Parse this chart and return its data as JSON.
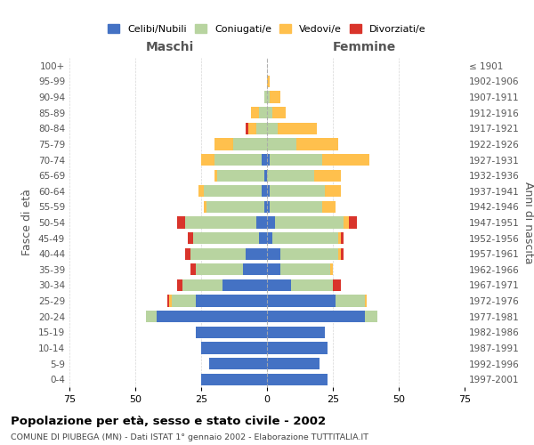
{
  "age_groups": [
    "100+",
    "95-99",
    "90-94",
    "85-89",
    "80-84",
    "75-79",
    "70-74",
    "65-69",
    "60-64",
    "55-59",
    "50-54",
    "45-49",
    "40-44",
    "35-39",
    "30-34",
    "25-29",
    "20-24",
    "15-19",
    "10-14",
    "5-9",
    "0-4"
  ],
  "birth_years": [
    "≤ 1901",
    "1902-1906",
    "1907-1911",
    "1912-1916",
    "1917-1921",
    "1922-1926",
    "1927-1931",
    "1932-1936",
    "1937-1941",
    "1942-1946",
    "1947-1951",
    "1952-1956",
    "1957-1961",
    "1962-1966",
    "1967-1971",
    "1972-1976",
    "1977-1981",
    "1982-1986",
    "1987-1991",
    "1992-1996",
    "1997-2001"
  ],
  "maschi": {
    "celibi": [
      0,
      0,
      0,
      0,
      0,
      0,
      2,
      1,
      2,
      1,
      4,
      3,
      8,
      9,
      17,
      27,
      42,
      27,
      25,
      22,
      25
    ],
    "coniugati": [
      0,
      0,
      1,
      3,
      4,
      13,
      18,
      18,
      22,
      22,
      27,
      25,
      21,
      18,
      15,
      9,
      4,
      0,
      0,
      0,
      0
    ],
    "vedovi": [
      0,
      0,
      0,
      3,
      3,
      7,
      5,
      1,
      2,
      1,
      0,
      0,
      0,
      0,
      0,
      1,
      0,
      0,
      0,
      0,
      0
    ],
    "divorziati": [
      0,
      0,
      0,
      0,
      1,
      0,
      0,
      0,
      0,
      0,
      3,
      2,
      2,
      2,
      2,
      1,
      0,
      0,
      0,
      0,
      0
    ]
  },
  "femmine": {
    "nubili": [
      0,
      0,
      0,
      0,
      0,
      0,
      1,
      0,
      1,
      1,
      3,
      2,
      5,
      5,
      9,
      26,
      37,
      22,
      23,
      20,
      23
    ],
    "coniugate": [
      0,
      0,
      1,
      2,
      4,
      11,
      20,
      18,
      21,
      20,
      26,
      25,
      22,
      19,
      16,
      11,
      5,
      0,
      0,
      0,
      0
    ],
    "vedove": [
      0,
      1,
      4,
      5,
      15,
      16,
      18,
      10,
      6,
      5,
      2,
      1,
      1,
      1,
      0,
      1,
      0,
      0,
      0,
      0,
      0
    ],
    "divorziate": [
      0,
      0,
      0,
      0,
      0,
      0,
      0,
      0,
      0,
      0,
      3,
      1,
      1,
      0,
      3,
      0,
      0,
      0,
      0,
      0,
      0
    ]
  },
  "colors": {
    "celibi_nubili": "#4472c4",
    "coniugati_e": "#b8d4a0",
    "vedovi_e": "#ffc04d",
    "divorziati_e": "#d9342b"
  },
  "xlim": 75,
  "title": "Popolazione per età, sesso e stato civile - 2002",
  "subtitle": "COMUNE DI PIUBEGA (MN) - Dati ISTAT 1° gennaio 2002 - Elaborazione TUTTITALIA.IT",
  "xlabel_left": "Maschi",
  "xlabel_right": "Femmine",
  "ylabel_left": "Fasce di età",
  "ylabel_right": "Anni di nascita",
  "legend_labels": [
    "Celibi/Nubili",
    "Coniugati/e",
    "Vedovi/e",
    "Divorziati/e"
  ]
}
